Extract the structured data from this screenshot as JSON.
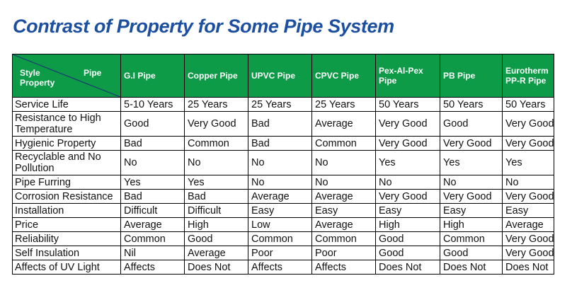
{
  "title": "Contrast of Property for Some Pipe System",
  "header": {
    "corner_style": "Style",
    "corner_property": "Property",
    "corner_pipe": "Pipe",
    "columns": [
      "G.I Pipe",
      "Copper Pipe",
      "UPVC Pipe",
      "CPVC Pipe",
      "Pex-Al-Pex Pipe",
      "PB Pipe",
      "Eurotherm PP-R Pipe"
    ]
  },
  "rows": [
    {
      "property": "Service Life",
      "values": [
        "5-10 Years",
        "25 Years",
        "25 Years",
        "25 Years",
        "50 Years",
        "50 Years",
        "50 Years"
      ]
    },
    {
      "property": "Resistance to High Temperature",
      "values": [
        "Good",
        "Very Good",
        "Bad",
        "Average",
        "Very Good",
        "Good",
        "Very Good"
      ]
    },
    {
      "property": "Hygienic Property",
      "values": [
        "Bad",
        "Common",
        "Bad",
        "Common",
        "Very Good",
        "Very Good",
        "Very Good"
      ]
    },
    {
      "property": "Recyclable and No Pollution",
      "values": [
        "No",
        "No",
        "No",
        "No",
        "Yes",
        "Yes",
        "Yes"
      ]
    },
    {
      "property": "Pipe Furring",
      "values": [
        "Yes",
        "Yes",
        "No",
        "No",
        "No",
        "No",
        "No"
      ]
    },
    {
      "property": "Corrosion Resistance",
      "values": [
        "Bad",
        "Bad",
        "Average",
        "Average",
        "Very Good",
        "Very Good",
        "Very Good"
      ]
    },
    {
      "property": "Installation",
      "values": [
        "Difficult",
        "Difficult",
        "Easy",
        "Easy",
        "Easy",
        "Easy",
        "Easy"
      ]
    },
    {
      "property": "Price",
      "values": [
        "Average",
        "High",
        "Low",
        "Average",
        "High",
        "High",
        "Average"
      ]
    },
    {
      "property": "Reliability",
      "values": [
        "Common",
        "Good",
        "Common",
        "Common",
        "Good",
        "Common",
        "Very Good"
      ]
    },
    {
      "property": "Self Insulation",
      "values": [
        "Nil",
        "Average",
        "Poor",
        "Poor",
        "Good",
        "Good",
        "Very Good"
      ]
    },
    {
      "property": "Affects of UV Light",
      "values": [
        "Affects",
        "Does Not",
        "Affects",
        "Affects",
        "Does Not",
        "Does Not",
        "Does Not"
      ]
    }
  ]
}
